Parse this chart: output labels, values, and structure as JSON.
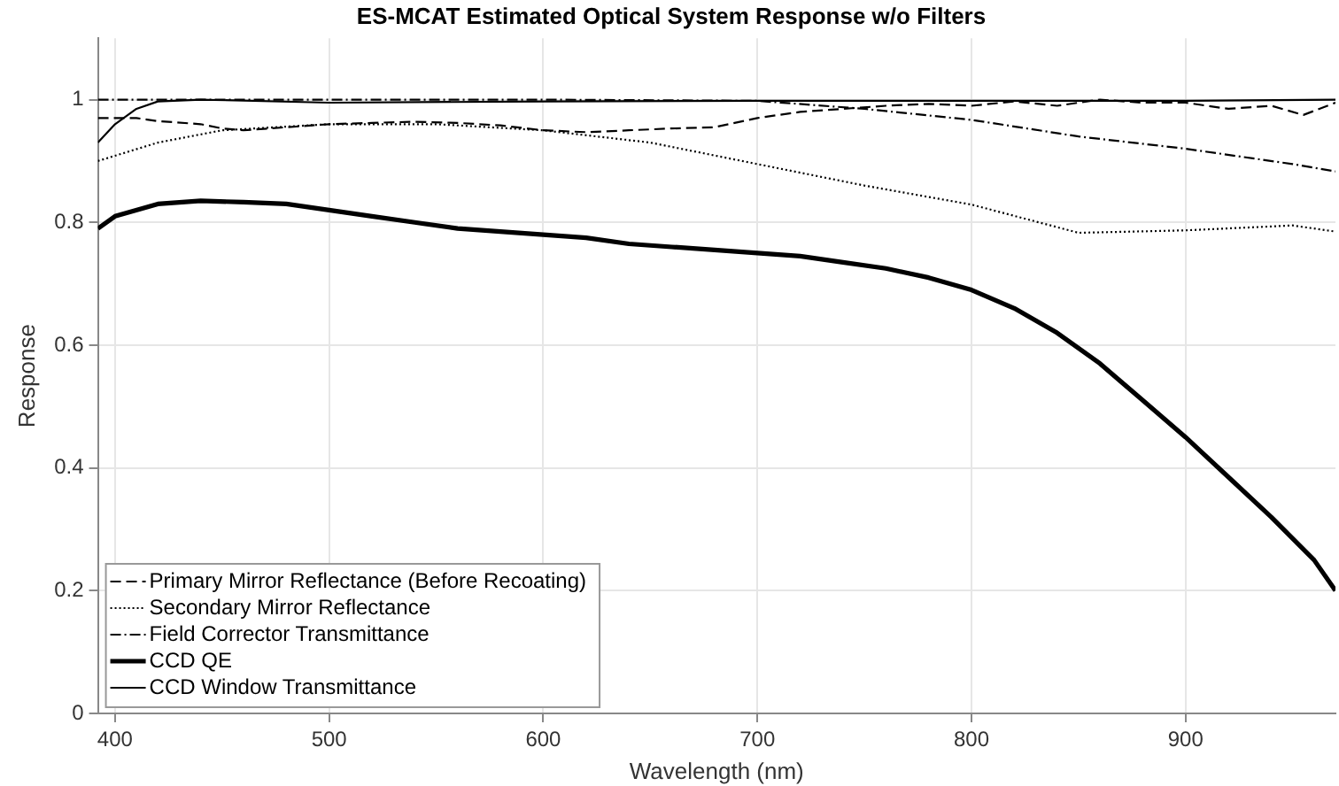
{
  "chart_data": {
    "type": "line",
    "title": "ES-MCAT Estimated Optical System Response w/o Filters",
    "xlabel": "Wavelength (nm)",
    "ylabel": "Response",
    "xlim": [
      392,
      970
    ],
    "ylim": [
      0,
      1.1
    ],
    "xticks": [
      400,
      500,
      600,
      700,
      800,
      900
    ],
    "yticks": [
      0,
      0.2,
      0.4,
      0.6,
      0.8,
      1
    ],
    "grid": true,
    "legend": "bottom left",
    "marker": "none",
    "series": [
      {
        "name": "Primary Mirror Reflectance (Before Recoating)",
        "color": "#000000",
        "line_style": "dashed",
        "x": [
          392,
          410,
          420,
          440,
          450,
          460,
          480,
          500,
          520,
          540,
          560,
          580,
          600,
          620,
          640,
          660,
          680,
          700,
          720,
          740,
          760,
          780,
          800,
          820,
          840,
          860,
          880,
          900,
          920,
          940,
          955,
          970
        ],
        "values": [
          0.97,
          0.97,
          0.965,
          0.96,
          0.953,
          0.95,
          0.955,
          0.96,
          0.962,
          0.964,
          0.962,
          0.958,
          0.95,
          0.947,
          0.95,
          0.953,
          0.955,
          0.97,
          0.98,
          0.985,
          0.99,
          0.993,
          0.99,
          0.997,
          0.99,
          1.0,
          0.995,
          0.995,
          0.985,
          0.99,
          0.975,
          0.995
        ]
      },
      {
        "name": "Secondary Mirror Reflectance",
        "color": "#000000",
        "line_style": "dotted",
        "x": [
          392,
          420,
          450,
          500,
          550,
          600,
          650,
          700,
          750,
          800,
          850,
          900,
          950,
          970
        ],
        "values": [
          0.9,
          0.93,
          0.95,
          0.96,
          0.96,
          0.95,
          0.93,
          0.895,
          0.86,
          0.829,
          0.783,
          0.787,
          0.795,
          0.785
        ]
      },
      {
        "name": "Field Corrector Transmittance",
        "color": "#000000",
        "line_style": "dashdot",
        "x": [
          392,
          450,
          500,
          600,
          700,
          750,
          800,
          850,
          900,
          950,
          970
        ],
        "values": [
          1.0,
          1.0,
          1.0,
          1.0,
          0.998,
          0.985,
          0.967,
          0.94,
          0.92,
          0.895,
          0.883
        ]
      },
      {
        "name": "CCD QE",
        "color": "#000000",
        "line_style": "solid",
        "x": [
          392,
          400,
          420,
          440,
          460,
          480,
          500,
          520,
          540,
          560,
          580,
          600,
          620,
          640,
          660,
          680,
          700,
          720,
          740,
          760,
          780,
          800,
          820,
          840,
          860,
          880,
          900,
          920,
          940,
          960,
          970
        ],
        "values": [
          0.79,
          0.81,
          0.83,
          0.835,
          0.833,
          0.83,
          0.82,
          0.81,
          0.8,
          0.79,
          0.785,
          0.78,
          0.775,
          0.765,
          0.76,
          0.755,
          0.75,
          0.745,
          0.735,
          0.725,
          0.71,
          0.69,
          0.66,
          0.62,
          0.57,
          0.51,
          0.45,
          0.385,
          0.32,
          0.25,
          0.2
        ]
      },
      {
        "name": "CCD Window Transmittance",
        "color": "#000000",
        "line_style": "solid",
        "x": [
          392,
          400,
          410,
          420,
          440,
          500,
          600,
          700,
          800,
          900,
          970
        ],
        "values": [
          0.93,
          0.96,
          0.985,
          0.997,
          1.0,
          0.995,
          0.997,
          0.998,
          0.998,
          0.998,
          1.0
        ]
      }
    ]
  }
}
